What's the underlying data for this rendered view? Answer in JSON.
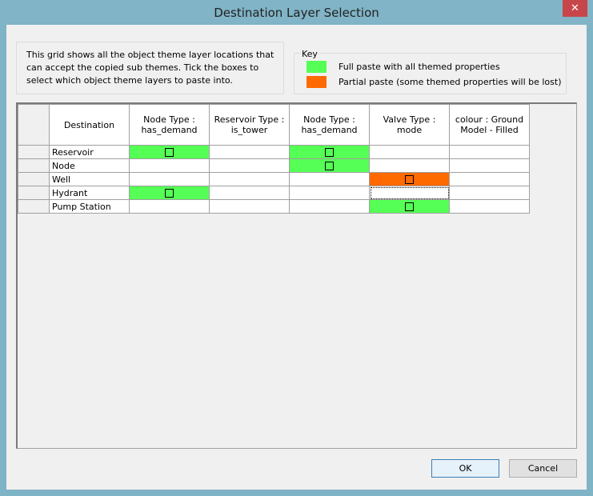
{
  "window": {
    "title": "Destination Layer Selection",
    "close_icon": "close-icon"
  },
  "info": "This grid shows all the object theme layer locations that can accept the copied sub themes. Tick the boxes to select which object theme layers to paste into.",
  "key": {
    "label": "Key",
    "items": [
      {
        "color": "#55ff55",
        "text": "Full paste with all themed properties"
      },
      {
        "color": "#ff6a00",
        "text": "Partial paste (some themed properties will be lost)"
      }
    ]
  },
  "grid": {
    "columns": [
      "Destination",
      "Node Type : has_demand",
      "Reservoir Type : is_tower",
      "Node Type : has_demand",
      "Valve Type : mode",
      "colour : Ground Model - Filled"
    ],
    "rows": [
      {
        "name": "Reservoir",
        "cells": [
          "full",
          "none",
          "full",
          "none",
          "none"
        ]
      },
      {
        "name": "Node",
        "cells": [
          "none",
          "none",
          "full",
          "none",
          "none"
        ]
      },
      {
        "name": "Well",
        "cells": [
          "none",
          "none",
          "none",
          "partial",
          "none"
        ]
      },
      {
        "name": "Hydrant",
        "cells": [
          "full",
          "none",
          "none",
          "focus",
          "none"
        ]
      },
      {
        "name": "Pump Station",
        "cells": [
          "none",
          "none",
          "none",
          "full",
          "none"
        ]
      }
    ]
  },
  "buttons": {
    "ok": "OK",
    "cancel": "Cancel"
  }
}
